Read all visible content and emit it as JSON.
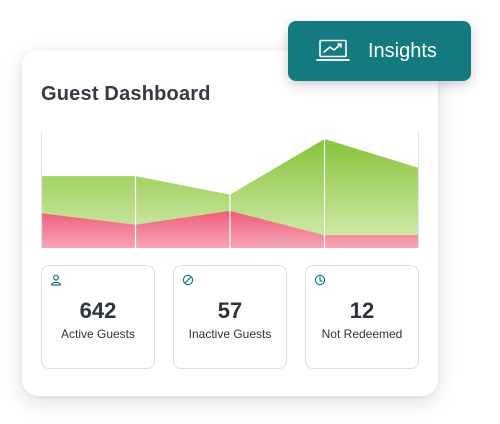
{
  "dashboard": {
    "title": "Guest Dashboard"
  },
  "insights_button": {
    "label": "Insights",
    "icon": "laptop-chart-icon",
    "color": "#137a7f"
  },
  "stats": [
    {
      "value": "642",
      "label": "Active Guests",
      "icon": "user-icon"
    },
    {
      "value": "57",
      "label": "Inactive Guests",
      "icon": "ban-icon"
    },
    {
      "value": "12",
      "label": "Not Redeemed",
      "icon": "clock-icon"
    }
  ],
  "colors": {
    "accent": "#137a7f",
    "green_series": "#8ec63f",
    "red_series": "#f0607a"
  },
  "chart_data": {
    "type": "area",
    "x": [
      0,
      1,
      2,
      3,
      4
    ],
    "ylim": [
      0,
      100
    ],
    "grid": "vertical",
    "series": [
      {
        "values": [
          30,
          20,
          32,
          11,
          11
        ],
        "color": "red"
      },
      {
        "values": [
          62,
          62,
          46,
          94,
          69
        ],
        "color": "green"
      }
    ]
  }
}
